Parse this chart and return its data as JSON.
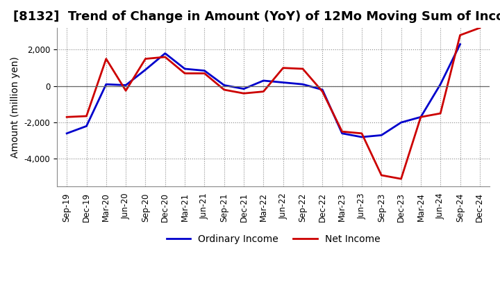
{
  "title": "[8132]  Trend of Change in Amount (YoY) of 12Mo Moving Sum of Incomes",
  "ylabel": "Amount (million yen)",
  "x_labels": [
    "Sep-19",
    "Dec-19",
    "Mar-20",
    "Jun-20",
    "Sep-20",
    "Dec-20",
    "Mar-21",
    "Jun-21",
    "Sep-21",
    "Dec-21",
    "Mar-22",
    "Jun-22",
    "Sep-22",
    "Dec-22",
    "Mar-23",
    "Jun-23",
    "Sep-23",
    "Dec-23",
    "Mar-24",
    "Jun-24",
    "Sep-24",
    "Dec-24"
  ],
  "ordinary_income": [
    -2600,
    -2200,
    100,
    50,
    900,
    1800,
    950,
    850,
    50,
    -150,
    300,
    200,
    100,
    -200,
    -2600,
    -2800,
    -2700,
    -2000,
    -1700,
    100,
    2300,
    null
  ],
  "net_income": [
    -1700,
    -1650,
    1500,
    -250,
    1500,
    1600,
    700,
    700,
    -200,
    -400,
    -300,
    1000,
    950,
    -300,
    -2500,
    -2600,
    -4900,
    -5100,
    -1700,
    -1500,
    2800,
    3200
  ],
  "ordinary_income_color": "#0000cc",
  "net_income_color": "#cc0000",
  "background_color": "#ffffff",
  "grid_color": "#888888",
  "ylim": [
    -5500,
    3200
  ],
  "yticks": [
    -4000,
    -2000,
    0,
    2000
  ],
  "legend_ordinary": "Ordinary Income",
  "legend_net": "Net Income",
  "line_width": 2.0,
  "title_fontsize": 13,
  "axis_fontsize": 10,
  "tick_fontsize": 8.5
}
